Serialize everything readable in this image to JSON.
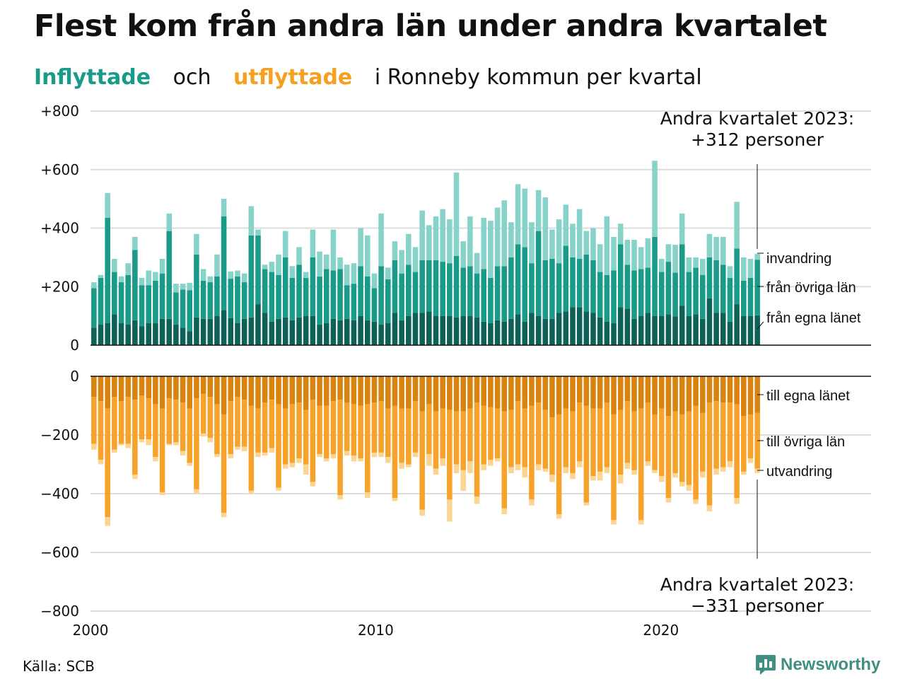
{
  "title": "Flest kom från andra län under andra kvartalet",
  "subtitle": {
    "inflyttade": "Inflyttade",
    "och": "och",
    "utflyttade": "utflyttade",
    "rest": "i Ronneby  kommun  per  kvartal"
  },
  "source": "Källa: SCB",
  "brand": "Newsworthy",
  "colors": {
    "in_egna": "#0e6157",
    "in_ovriga": "#1a9a88",
    "in_invandring": "#87d3c9",
    "out_egna": "#d98310",
    "out_ovriga": "#f7a22a",
    "out_utvandring": "#fbd591",
    "grid": "#dddddd",
    "axis": "#111111"
  },
  "chart_data": {
    "type": "bar",
    "stacked": true,
    "x_axis": {
      "start": 2000,
      "end": 2026,
      "ticks": [
        "2000",
        "2010",
        "2020"
      ]
    },
    "top_panel": {
      "yticks": [
        "+800",
        "+600",
        "+400",
        "+200",
        "0"
      ],
      "ylim": [
        0,
        800
      ],
      "segment_labels": [
        "invandring",
        "från övriga län",
        "från egna länet"
      ],
      "annotation": [
        "Andra kvartalet 2023:",
        "+312 personer"
      ],
      "series": [
        {
          "name": "från egna länet",
          "values": [
            60,
            70,
            75,
            105,
            75,
            70,
            85,
            65,
            75,
            75,
            90,
            90,
            70,
            60,
            48,
            95,
            90,
            90,
            100,
            120,
            92,
            75,
            90,
            95,
            140,
            110,
            80,
            90,
            95,
            85,
            95,
            100,
            100,
            70,
            75,
            90,
            85,
            90,
            85,
            100,
            85,
            80,
            70,
            75,
            110,
            85,
            100,
            110,
            110,
            115,
            100,
            100,
            100,
            95,
            100,
            100,
            95,
            80,
            75,
            85,
            80,
            90,
            105,
            80,
            110,
            100,
            90,
            90,
            110,
            115,
            130,
            130,
            115,
            110,
            95,
            80,
            75,
            130,
            125,
            90,
            100,
            110,
            100,
            100,
            105,
            98,
            135,
            100,
            105,
            90,
            160,
            110,
            110,
            80,
            140,
            100,
            100,
            102
          ]
        },
        {
          "name": "från övriga län",
          "values": [
            135,
            160,
            360,
            145,
            140,
            170,
            240,
            140,
            130,
            145,
            155,
            300,
            110,
            130,
            140,
            215,
            130,
            125,
            135,
            320,
            135,
            160,
            125,
            280,
            235,
            150,
            170,
            150,
            205,
            145,
            180,
            130,
            200,
            165,
            185,
            165,
            175,
            115,
            125,
            170,
            150,
            115,
            200,
            150,
            180,
            160,
            175,
            140,
            180,
            175,
            190,
            185,
            180,
            210,
            165,
            170,
            150,
            180,
            155,
            185,
            190,
            210,
            240,
            255,
            170,
            290,
            200,
            205,
            170,
            225,
            170,
            165,
            195,
            180,
            155,
            160,
            180,
            215,
            150,
            165,
            160,
            155,
            270,
            150,
            180,
            150,
            210,
            150,
            160,
            150,
            140,
            180,
            165,
            150,
            190,
            120,
            130,
            190
          ]
        },
        {
          "name": "invandring",
          "values": [
            20,
            10,
            85,
            45,
            20,
            40,
            45,
            25,
            50,
            30,
            50,
            60,
            30,
            20,
            25,
            70,
            40,
            20,
            75,
            60,
            25,
            20,
            30,
            100,
            20,
            15,
            35,
            70,
            90,
            40,
            60,
            20,
            95,
            85,
            50,
            140,
            40,
            70,
            70,
            130,
            140,
            50,
            180,
            40,
            65,
            80,
            105,
            85,
            170,
            120,
            150,
            180,
            150,
            285,
            90,
            170,
            70,
            175,
            195,
            200,
            225,
            120,
            205,
            200,
            140,
            140,
            215,
            100,
            150,
            140,
            115,
            170,
            80,
            110,
            95,
            200,
            115,
            70,
            85,
            105,
            75,
            100,
            260,
            45,
            60,
            95,
            105,
            50,
            35,
            55,
            80,
            80,
            95,
            40,
            160,
            80,
            65,
            20
          ]
        }
      ]
    },
    "bottom_panel": {
      "yticks": [
        "0",
        "−200",
        "−400",
        "−600",
        "−800"
      ],
      "ylim": [
        -800,
        0
      ],
      "segment_labels": [
        "till egna länet",
        "till övriga län",
        "utvandring"
      ],
      "annotation": [
        "Andra kvartalet 2023:",
        "−331 personer"
      ],
      "series": [
        {
          "name": "till egna länet",
          "values": [
            -70,
            -85,
            -110,
            -70,
            -85,
            -70,
            -80,
            -65,
            -75,
            -95,
            -110,
            -75,
            -80,
            -90,
            -110,
            -75,
            -60,
            -70,
            -95,
            -130,
            -85,
            -70,
            -80,
            -100,
            -110,
            -90,
            -80,
            -95,
            -110,
            -95,
            -90,
            -115,
            -80,
            -100,
            -100,
            -85,
            -80,
            -90,
            -95,
            -100,
            -95,
            -90,
            -85,
            -110,
            -100,
            -110,
            -110,
            -85,
            -120,
            -95,
            -120,
            -110,
            -115,
            -120,
            -120,
            -110,
            -90,
            -100,
            -105,
            -110,
            -120,
            -115,
            -85,
            -110,
            -100,
            -90,
            -115,
            -140,
            -130,
            -110,
            -120,
            -90,
            -100,
            -110,
            -110,
            -90,
            -130,
            -115,
            -85,
            -120,
            -110,
            -90,
            -130,
            -110,
            -135,
            -120,
            -130,
            -120,
            -100,
            -125,
            -90,
            -85,
            -90,
            -90,
            -95,
            -135,
            -130,
            -125
          ]
        },
        {
          "name": "till övriga län",
          "values": [
            -160,
            -200,
            -370,
            -180,
            -145,
            -160,
            -255,
            -150,
            -140,
            -180,
            -285,
            -155,
            -145,
            -165,
            -185,
            -310,
            -135,
            -140,
            -170,
            -335,
            -180,
            -170,
            -160,
            -290,
            -150,
            -170,
            -165,
            -285,
            -190,
            -200,
            -190,
            -185,
            -280,
            -165,
            -180,
            -180,
            -325,
            -165,
            -175,
            -180,
            -300,
            -170,
            -175,
            -165,
            -315,
            -185,
            -190,
            -175,
            -335,
            -170,
            -195,
            -170,
            -305,
            -180,
            -200,
            -180,
            -320,
            -200,
            -180,
            -170,
            -330,
            -195,
            -215,
            -200,
            -320,
            -210,
            -200,
            -195,
            -340,
            -200,
            -210,
            -200,
            -330,
            -230,
            -215,
            -220,
            -360,
            -220,
            -210,
            -200,
            -380,
            -200,
            -190,
            -230,
            -280,
            -210,
            -230,
            -250,
            -320,
            -200,
            -350,
            -230,
            -220,
            -200,
            -320,
            -190,
            -150,
            -190
          ]
        },
        {
          "name": "utvandring",
          "values": [
            -20,
            -15,
            -30,
            -10,
            -5,
            -15,
            -15,
            -10,
            -20,
            -15,
            -10,
            -5,
            -10,
            -15,
            -10,
            -15,
            -10,
            -15,
            -10,
            -15,
            -15,
            -10,
            -15,
            -10,
            -15,
            -10,
            -15,
            -10,
            -15,
            -15,
            -15,
            -35,
            -15,
            -10,
            -10,
            -15,
            -15,
            -15,
            -20,
            -10,
            -20,
            -15,
            -15,
            -20,
            -10,
            -20,
            -10,
            -15,
            -20,
            -40,
            -20,
            -25,
            -75,
            -30,
            -70,
            -40,
            -25,
            -20,
            -20,
            -10,
            -20,
            -20,
            -20,
            -35,
            -20,
            -20,
            -10,
            -25,
            -15,
            -20,
            -20,
            -20,
            -10,
            -15,
            -30,
            -20,
            -15,
            -30,
            -20,
            -15,
            -15,
            -15,
            -10,
            -20,
            -15,
            -15,
            -15,
            -20,
            -15,
            -20,
            -20,
            -20,
            -15,
            -20,
            -20,
            -10,
            -15,
            -15
          ]
        }
      ]
    }
  }
}
